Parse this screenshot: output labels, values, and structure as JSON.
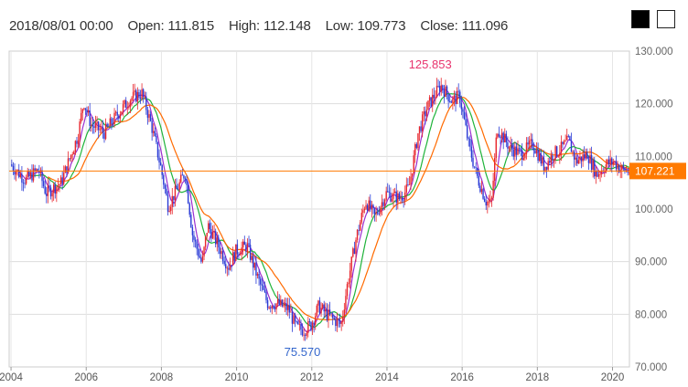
{
  "header": {
    "date": "2018/08/01 00:00",
    "open_label": "Open:",
    "open_value": "111.815",
    "high_label": "High:",
    "high_value": "112.148",
    "low_label": "Low:",
    "low_value": "109.773",
    "close_label": "Close:",
    "close_value": "111.096"
  },
  "theme_buttons": {
    "dark_color": "#000000",
    "light_color": "#ffffff"
  },
  "chart_data": {
    "type": "candlestick",
    "xlabel": "",
    "ylabel": "",
    "x_range": [
      2003.95,
      2020.45
    ],
    "ylim": [
      70,
      130
    ],
    "y_ticks": [
      "130.000",
      "120.000",
      "110.000",
      "100.000",
      "90.000",
      "80.000",
      "70.000"
    ],
    "x_ticks": [
      "2004",
      "2006",
      "2008",
      "2010",
      "2012",
      "2014",
      "2016",
      "2018",
      "2020"
    ],
    "last_price": "107.221",
    "last_price_color": "#ff7a00",
    "max_label": "125.853",
    "max_label_color": "#e8336d",
    "min_label": "75.570",
    "min_label_color": "#3366cc",
    "up_color": "#e8262d",
    "down_color": "#2a3bd6",
    "ma_colors": {
      "fast": "#9b2fd0",
      "mid": "#1fb33a",
      "slow": "#ff6a00"
    },
    "grid": true,
    "price_path_key_points": [
      [
        2004.0,
        108.5
      ],
      [
        2004.4,
        105.5
      ],
      [
        2004.75,
        107.5
      ],
      [
        2004.95,
        103.0
      ],
      [
        2005.35,
        105.0
      ],
      [
        2005.8,
        114.0
      ],
      [
        2005.95,
        120.5
      ],
      [
        2006.15,
        116.0
      ],
      [
        2006.5,
        114.5
      ],
      [
        2006.85,
        118.0
      ],
      [
        2007.2,
        121.0
      ],
      [
        2007.5,
        122.0
      ],
      [
        2007.75,
        116.0
      ],
      [
        2008.0,
        108.0
      ],
      [
        2008.2,
        100.5
      ],
      [
        2008.45,
        104.0
      ],
      [
        2008.65,
        107.0
      ],
      [
        2008.85,
        95.0
      ],
      [
        2009.1,
        89.5
      ],
      [
        2009.25,
        97.0
      ],
      [
        2009.5,
        93.5
      ],
      [
        2009.8,
        89.0
      ],
      [
        2010.0,
        92.0
      ],
      [
        2010.3,
        93.0
      ],
      [
        2010.6,
        86.5
      ],
      [
        2010.85,
        82.0
      ],
      [
        2011.1,
        82.0
      ],
      [
        2011.4,
        81.0
      ],
      [
        2011.6,
        77.5
      ],
      [
        2011.8,
        77.0
      ],
      [
        2012.0,
        78.0
      ],
      [
        2012.2,
        81.5
      ],
      [
        2012.5,
        79.5
      ],
      [
        2012.8,
        78.0
      ],
      [
        2012.95,
        85.0
      ],
      [
        2013.2,
        94.5
      ],
      [
        2013.45,
        101.5
      ],
      [
        2013.7,
        98.5
      ],
      [
        2014.0,
        103.0
      ],
      [
        2014.35,
        102.0
      ],
      [
        2014.6,
        104.0
      ],
      [
        2014.85,
        114.5
      ],
      [
        2015.1,
        119.5
      ],
      [
        2015.45,
        123.5
      ],
      [
        2015.75,
        120.5
      ],
      [
        2015.95,
        121.5
      ],
      [
        2016.2,
        112.0
      ],
      [
        2016.4,
        106.5
      ],
      [
        2016.65,
        101.5
      ],
      [
        2016.8,
        101.0
      ],
      [
        2016.95,
        115.5
      ],
      [
        2017.3,
        111.5
      ],
      [
        2017.6,
        110.5
      ],
      [
        2017.9,
        112.5
      ],
      [
        2018.2,
        108.0
      ],
      [
        2018.45,
        110.5
      ],
      [
        2018.6,
        111.1
      ],
      [
        2018.85,
        113.0
      ],
      [
        2019.05,
        109.0
      ],
      [
        2019.35,
        110.5
      ],
      [
        2019.6,
        106.5
      ],
      [
        2019.85,
        108.5
      ],
      [
        2020.05,
        109.0
      ],
      [
        2020.25,
        107.5
      ],
      [
        2020.45,
        107.2
      ]
    ]
  }
}
